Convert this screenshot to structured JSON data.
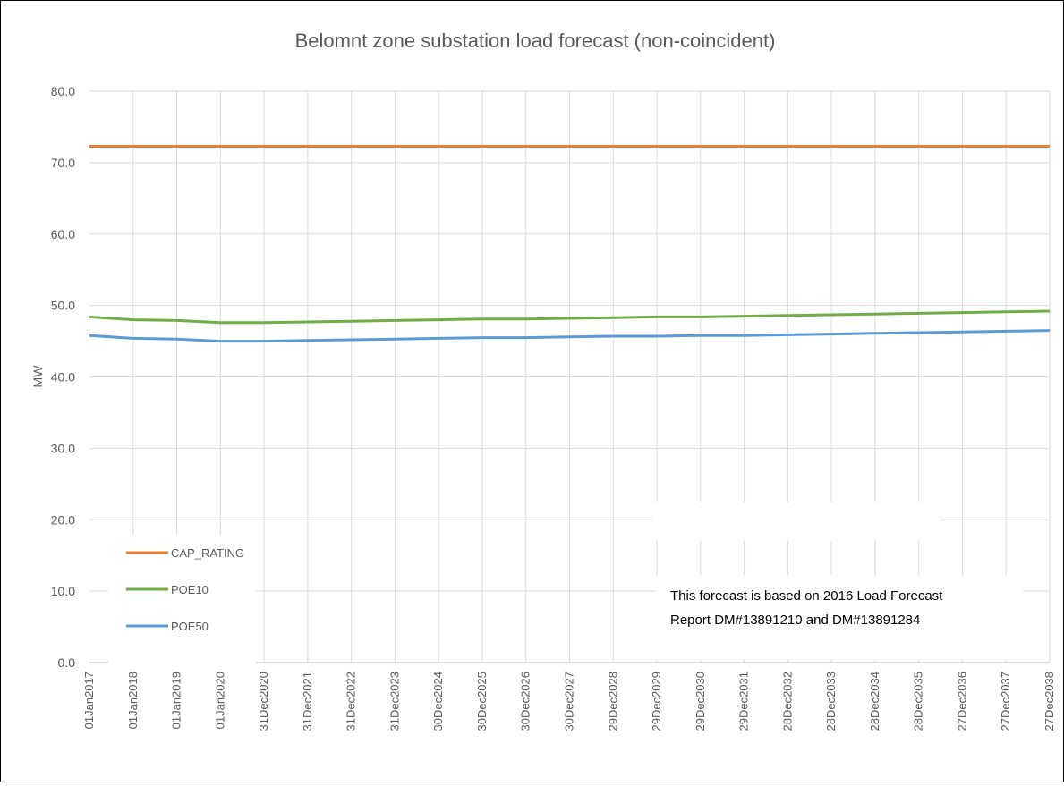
{
  "chart_data": {
    "type": "line",
    "title": "Belomnt zone substation load forecast (non-coincident)",
    "xlabel": "",
    "ylabel": "MW",
    "ylim": [
      0,
      80
    ],
    "yticks": [
      "0.0",
      "10.0",
      "20.0",
      "30.0",
      "40.0",
      "50.0",
      "60.0",
      "70.0",
      "80.0"
    ],
    "categories": [
      "01Jan2017",
      "01Jan2018",
      "01Jan2019",
      "01Jan2020",
      "31Dec2020",
      "31Dec2021",
      "31Dec2022",
      "31Dec2023",
      "30Dec2024",
      "30Dec2025",
      "30Dec2026",
      "30Dec2027",
      "29Dec2028",
      "29Dec2029",
      "29Dec2030",
      "29Dec2031",
      "28Dec2032",
      "28Dec2033",
      "28Dec2034",
      "28Dec2035",
      "27Dec2036",
      "27Dec2037",
      "27Dec2038"
    ],
    "grid": true,
    "legend_position": "bottom-left",
    "series": [
      {
        "name": "CAP_RATING",
        "color": "#ED7D31",
        "values": [
          72.3,
          72.3,
          72.3,
          72.3,
          72.3,
          72.3,
          72.3,
          72.3,
          72.3,
          72.3,
          72.3,
          72.3,
          72.3,
          72.3,
          72.3,
          72.3,
          72.3,
          72.3,
          72.3,
          72.3,
          72.3,
          72.3,
          72.3
        ]
      },
      {
        "name": "POE10",
        "color": "#70AD47",
        "values": [
          48.4,
          48.0,
          47.9,
          47.6,
          47.6,
          47.7,
          47.8,
          47.9,
          48.0,
          48.1,
          48.1,
          48.2,
          48.3,
          48.4,
          48.4,
          48.5,
          48.6,
          48.7,
          48.8,
          48.9,
          49.0,
          49.1,
          49.2
        ]
      },
      {
        "name": "POE50",
        "color": "#5B9BD5",
        "values": [
          45.8,
          45.4,
          45.3,
          45.0,
          45.0,
          45.1,
          45.2,
          45.3,
          45.4,
          45.5,
          45.5,
          45.6,
          45.7,
          45.7,
          45.8,
          45.8,
          45.9,
          46.0,
          46.1,
          46.2,
          46.3,
          46.4,
          46.5
        ]
      }
    ],
    "annotation": {
      "lines": [
        "This forecast is based on 2016 Load Forecast",
        "Report DM#13891210 and DM#13891284"
      ]
    }
  }
}
